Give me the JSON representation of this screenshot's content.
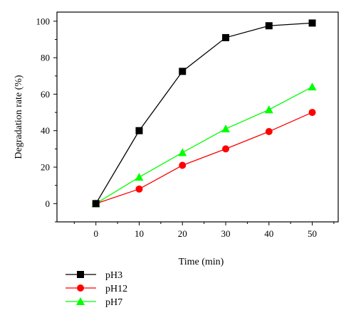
{
  "chart_data": {
    "type": "line",
    "title": "",
    "xlabel": "Time (min)",
    "ylabel": "Degradation rate (%)",
    "x": [
      0,
      10,
      20,
      30,
      40,
      50
    ],
    "xlim": [
      -9,
      56
    ],
    "ylim": [
      -10,
      105
    ],
    "xticks": [
      0,
      10,
      20,
      30,
      40,
      50
    ],
    "yticks": [
      0,
      20,
      40,
      60,
      80,
      100
    ],
    "grid": false,
    "legend_position": "bottom-left, below plot",
    "series": [
      {
        "name": "pH3",
        "color": "#000000",
        "marker": "square",
        "values": [
          0,
          40,
          72.5,
          91,
          97.5,
          99
        ]
      },
      {
        "name": "pH12",
        "color": "#ff0000",
        "marker": "circle",
        "values": [
          0,
          8,
          21,
          30,
          39.5,
          50
        ]
      },
      {
        "name": "pH7",
        "color": "#00ff00",
        "marker": "triangle",
        "values": [
          0,
          14.5,
          28,
          41,
          51.5,
          64
        ]
      }
    ]
  }
}
